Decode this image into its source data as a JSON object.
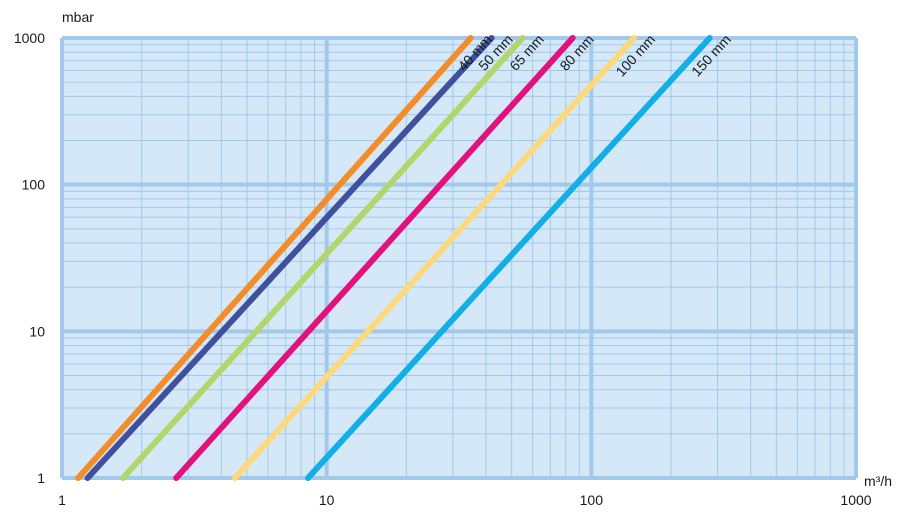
{
  "chart_data": {
    "type": "line",
    "title": "",
    "xlabel": "",
    "ylabel": "",
    "x_unit_label": "m³/h",
    "y_unit_label": "mbar",
    "x_scale": "log",
    "y_scale": "log",
    "xlim": [
      1,
      1000
    ],
    "ylim": [
      1,
      1000
    ],
    "x_ticks": [
      1,
      10,
      100,
      1000
    ],
    "y_ticks": [
      1,
      10,
      100,
      1000
    ],
    "x_tick_labels": [
      "1",
      "10",
      "100",
      "1000"
    ],
    "y_tick_labels": [
      "1",
      "10",
      "100",
      "1000"
    ],
    "grid": true,
    "legend": "none",
    "background_color": "#d5e8f8",
    "grid_color": "#a2c9ec",
    "series": [
      {
        "name": "40 mm",
        "color": "#f28d2a",
        "points": [
          [
            1.15,
            1
          ],
          [
            35,
            1000
          ]
        ]
      },
      {
        "name": "50 mm",
        "color": "#3f509c",
        "points": [
          [
            1.25,
            1
          ],
          [
            42,
            1000
          ]
        ]
      },
      {
        "name": "65 mm",
        "color": "#b3d66c",
        "points": [
          [
            1.7,
            1
          ],
          [
            55,
            1000
          ]
        ]
      },
      {
        "name": "80 mm",
        "color": "#e1127e",
        "points": [
          [
            2.7,
            1
          ],
          [
            85,
            1000
          ]
        ]
      },
      {
        "name": "100 mm",
        "color": "#fcd97b",
        "points": [
          [
            4.5,
            1
          ],
          [
            145,
            1000
          ]
        ]
      },
      {
        "name": "150 mm",
        "color": "#12aee6",
        "points": [
          [
            8.5,
            1
          ],
          [
            280,
            1000
          ]
        ]
      }
    ]
  }
}
